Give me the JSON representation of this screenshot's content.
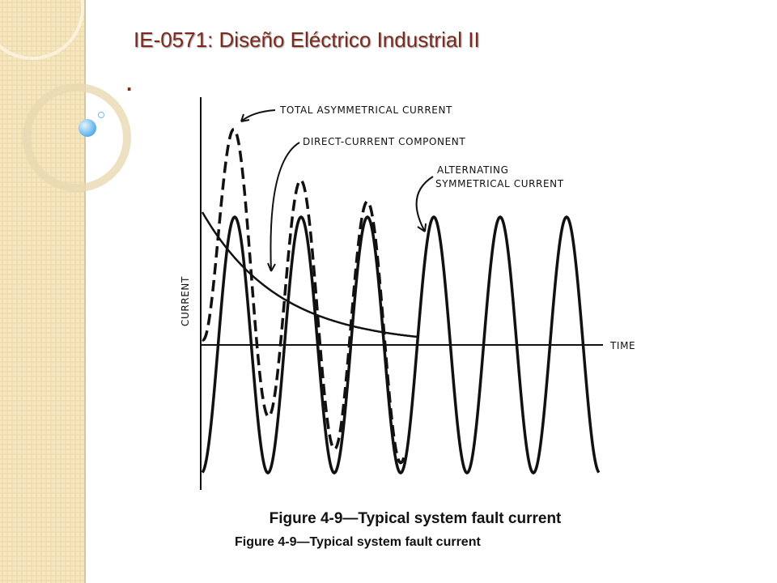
{
  "slide": {
    "title": "IE-0571: Diseño Eléctrico Industrial II",
    "bullet": "."
  },
  "figure": {
    "labels": {
      "total": "TOTAL ASYMMETRICAL CURRENT",
      "dc": "DIRECT-CURRENT COMPONENT",
      "ac": [
        "ALTERNATING",
        "SYMMETRICAL CURRENT"
      ],
      "y_axis": "CURRENT",
      "x_axis": "TIME"
    },
    "captions": [
      "Figure 4-9—Typical system fault current",
      "Figure 4-9—Typical system fault current"
    ]
  }
}
